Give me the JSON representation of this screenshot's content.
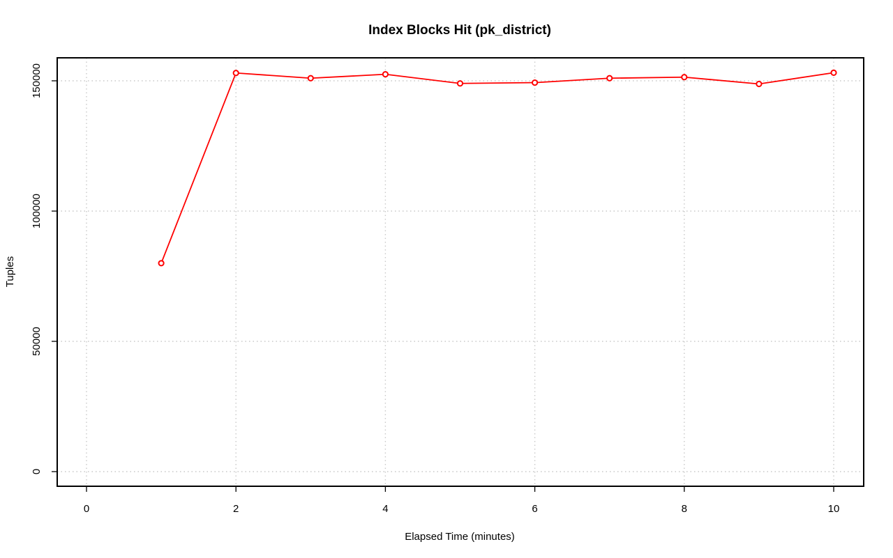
{
  "chart_data": {
    "type": "line",
    "title": "Index Blocks Hit (pk_district)",
    "xlabel": "Elapsed Time (minutes)",
    "ylabel": "Tuples",
    "xlim": [
      0,
      10
    ],
    "ylim": [
      0,
      150000
    ],
    "x_ticks": [
      0,
      2,
      4,
      6,
      8,
      10
    ],
    "y_ticks": [
      0,
      50000,
      100000,
      150000
    ],
    "grid": true,
    "series": [
      {
        "color": "#ff0000",
        "x": [
          1,
          2,
          3,
          4,
          5,
          6,
          7,
          8,
          9,
          10
        ],
        "y": [
          80000,
          153000,
          151000,
          152500,
          149000,
          149300,
          151000,
          151400,
          148800,
          153100
        ]
      }
    ]
  }
}
